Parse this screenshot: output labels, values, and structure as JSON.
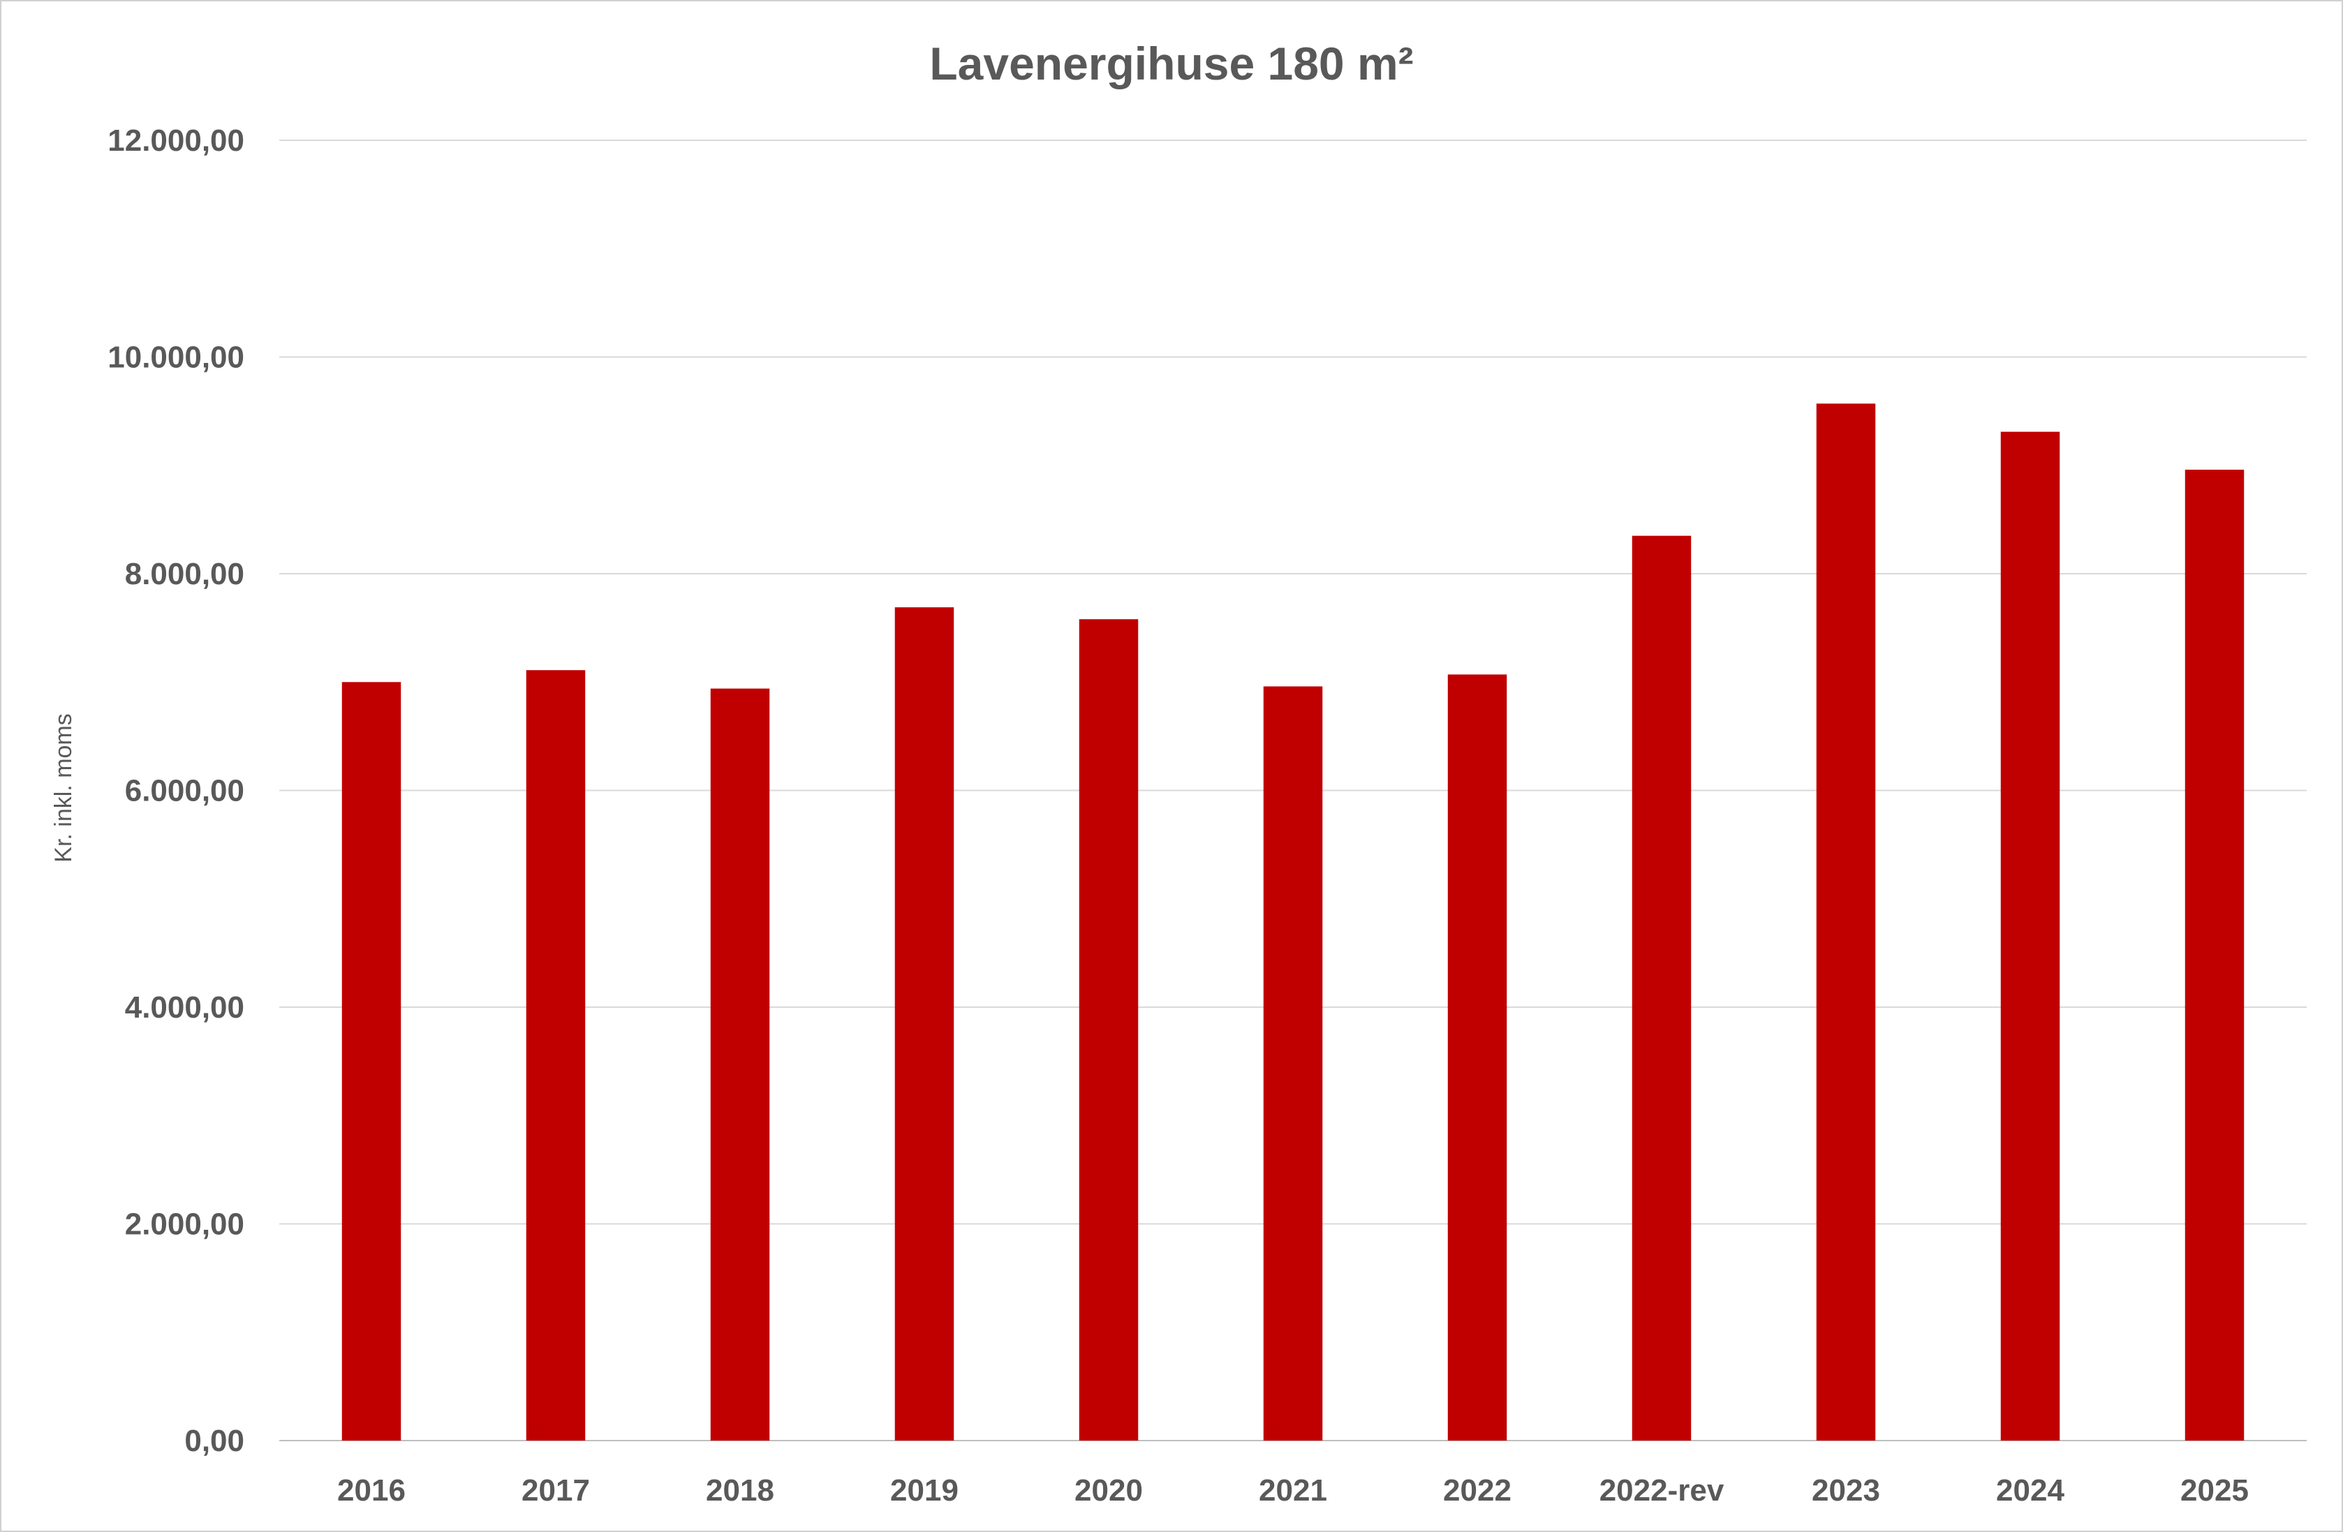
{
  "chart_data": {
    "type": "bar",
    "title": "Lavenergihuse 180 m²",
    "xlabel": "",
    "ylabel": "Kr. inkl. moms",
    "categories": [
      "2016",
      "2017",
      "2018",
      "2019",
      "2020",
      "2021",
      "2022",
      "2022-rev",
      "2023",
      "2024",
      "2025"
    ],
    "values": [
      7000,
      7110,
      6940,
      7690,
      7580,
      6960,
      7070,
      8350,
      9570,
      9310,
      8960
    ],
    "ylim": [
      0,
      12000
    ],
    "yticks": [
      0,
      2000,
      4000,
      6000,
      8000,
      10000,
      12000
    ],
    "ytick_labels": [
      "0,00",
      "2.000,00",
      "4.000,00",
      "6.000,00",
      "8.000,00",
      "10.000,00",
      "12.000,00"
    ],
    "bar_color": "#c00000",
    "grid": true,
    "legend": "none"
  }
}
